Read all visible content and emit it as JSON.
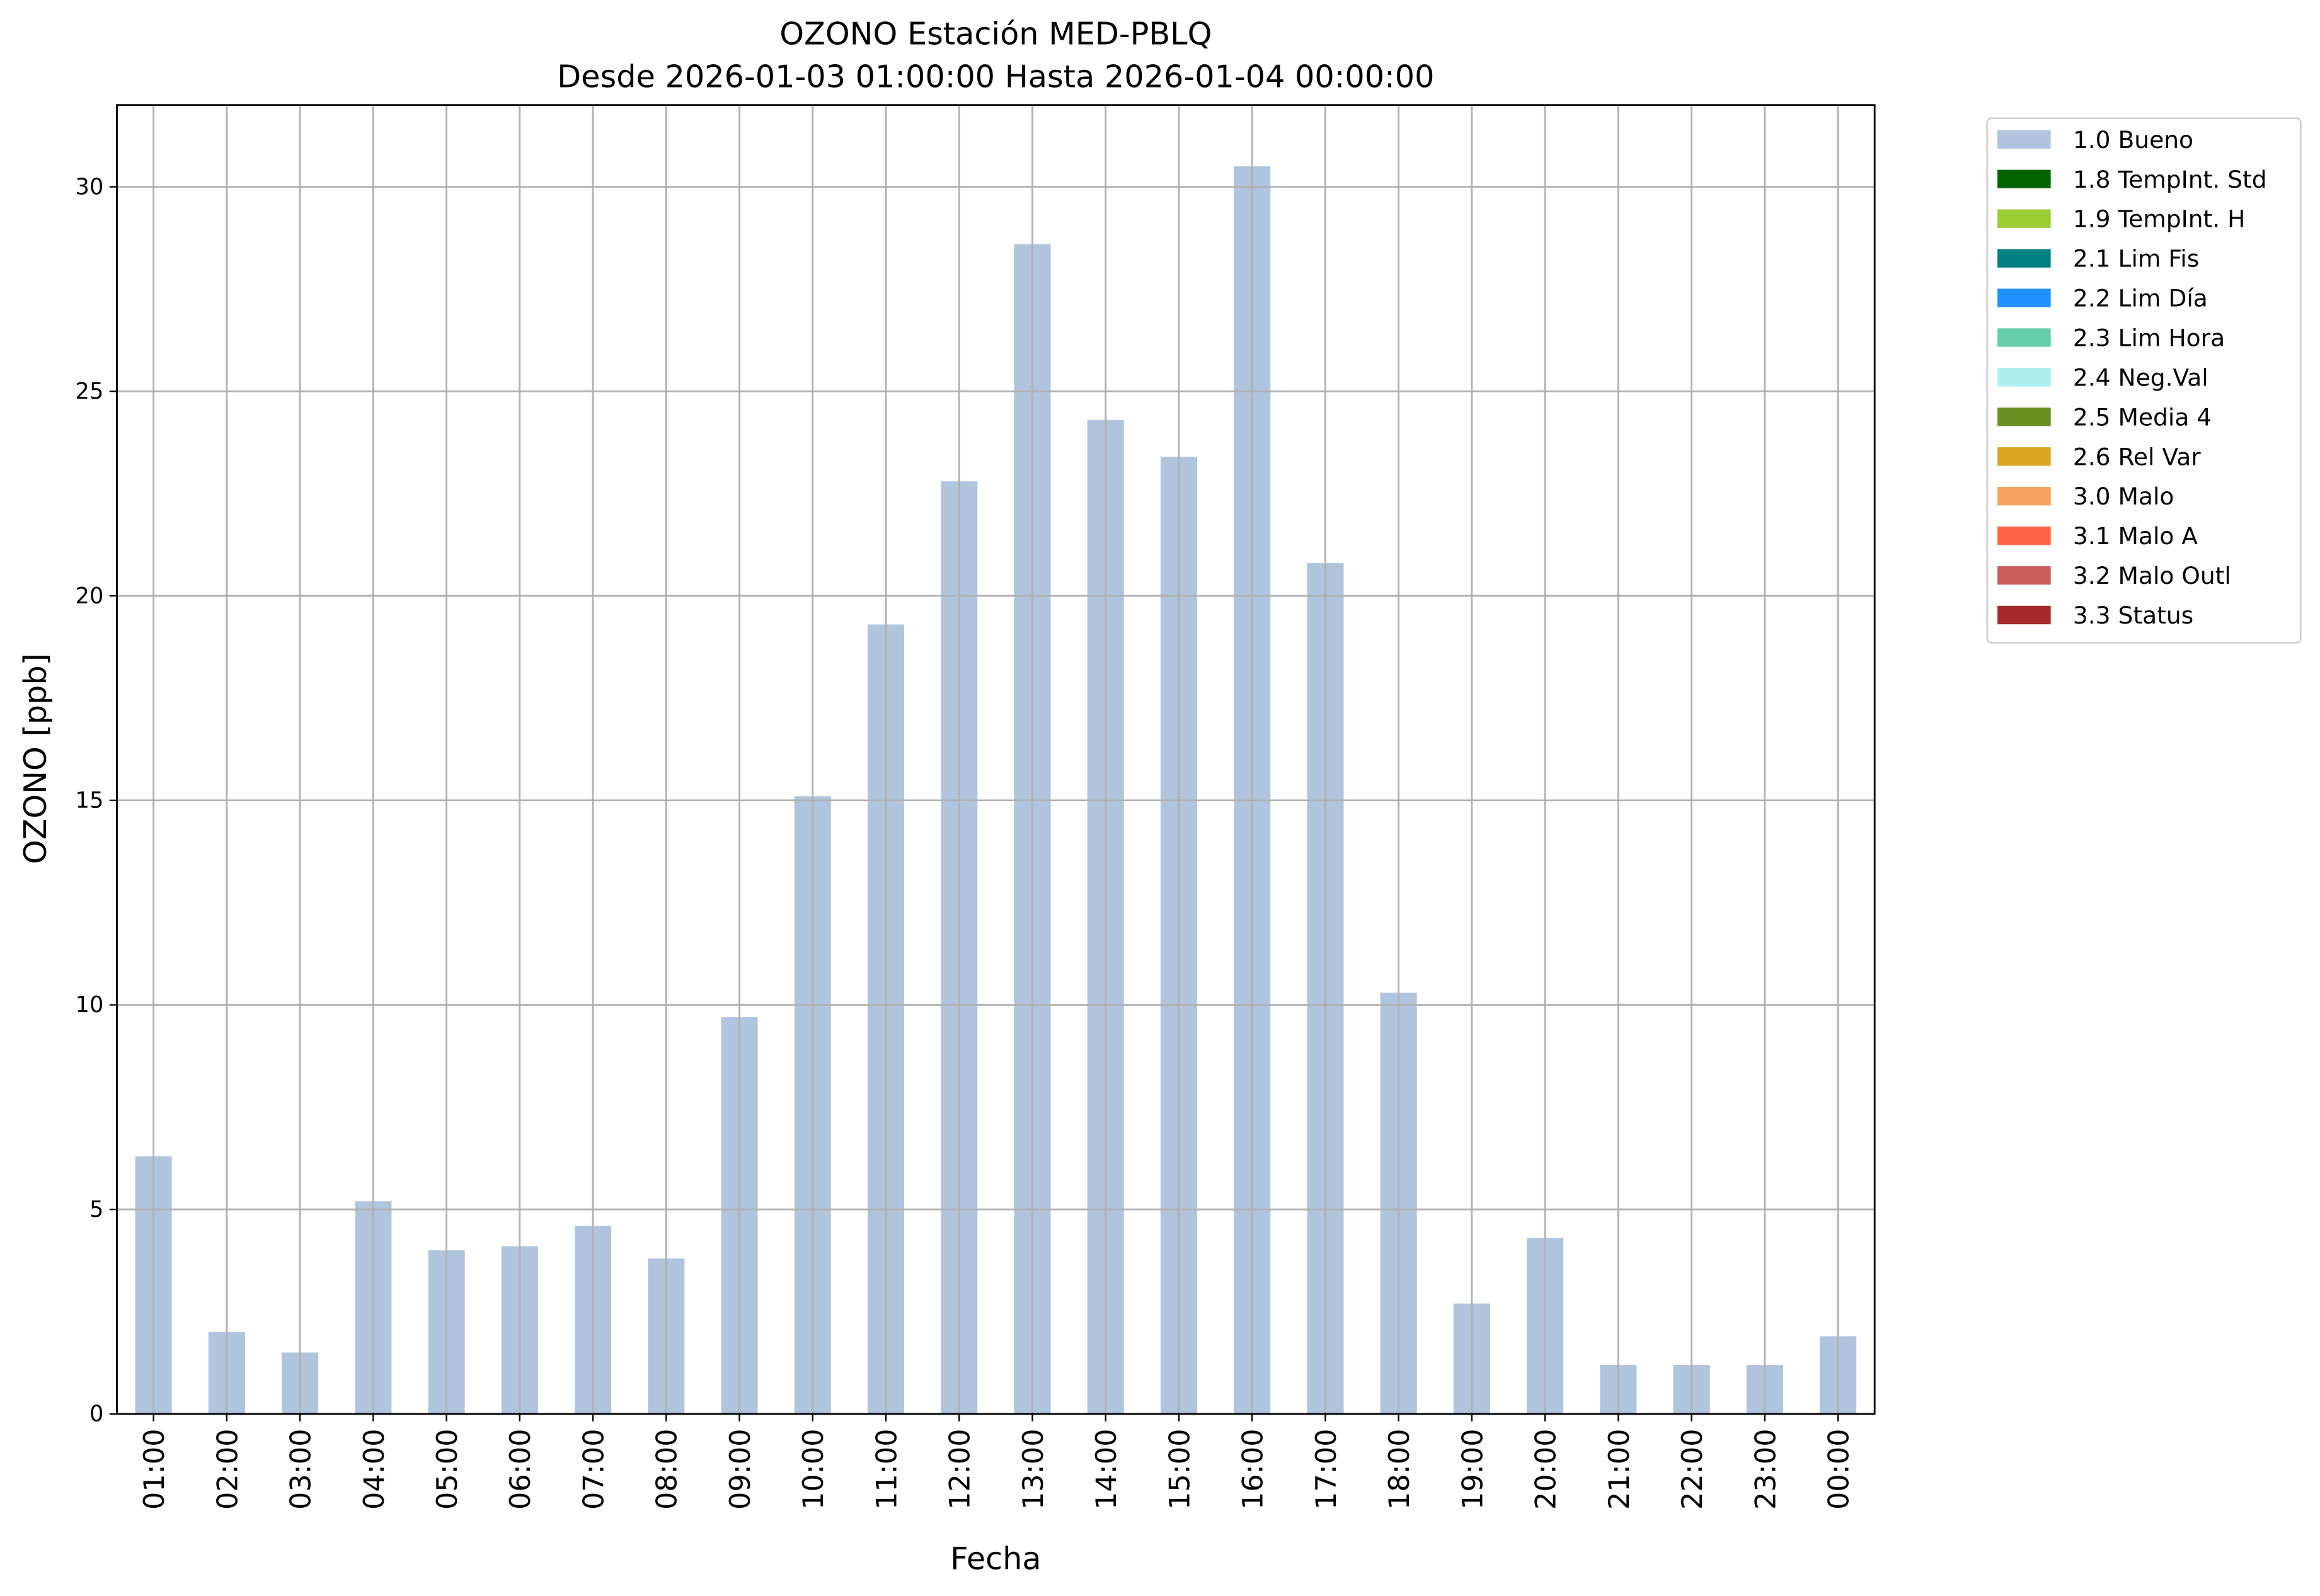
{
  "chart_data": {
    "type": "stacked_bar",
    "title": "OZONO Estación MED-PBLQ",
    "subtitle": "Desde 2026-01-03 01:00:00 Hasta 2026-01-04 00:00:00",
    "x_label": "Fecha",
    "y_label": "OZONO [ppb]",
    "categories": [
      "01:00",
      "02:00",
      "03:00",
      "04:00",
      "05:00",
      "06:00",
      "07:00",
      "08:00",
      "09:00",
      "10:00",
      "11:00",
      "12:00",
      "13:00",
      "14:00",
      "15:00",
      "16:00",
      "17:00",
      "18:00",
      "19:00",
      "20:00",
      "21:00",
      "22:00",
      "23:00",
      "00:00"
    ],
    "series": [
      {
        "name": "1.0 Bueno",
        "color": "#b0c4de",
        "values": [
          6.3,
          2.0,
          1.5,
          5.2,
          4.0,
          4.1,
          4.6,
          3.8,
          9.7,
          15.1,
          19.3,
          22.8,
          28.6,
          24.3,
          23.4,
          30.5,
          20.8,
          10.3,
          2.7,
          4.3,
          1.2,
          1.2,
          1.2,
          1.9
        ]
      },
      {
        "name": "1.8 TempInt. Std",
        "color": "#006400",
        "values": [
          0,
          0,
          0,
          0,
          0,
          0,
          0,
          0,
          0,
          0,
          0,
          0,
          0,
          0,
          0,
          0,
          0,
          0,
          0,
          0,
          0,
          0,
          0,
          0
        ]
      },
      {
        "name": "1.9 TempInt. H",
        "color": "#9acd32",
        "values": [
          0,
          0,
          0,
          0,
          0,
          0,
          0,
          0,
          0,
          0,
          0,
          0,
          0,
          0,
          0,
          0,
          0,
          0,
          0,
          0,
          0,
          0,
          0,
          0
        ]
      },
      {
        "name": "2.1 Lim Fis",
        "color": "#008080",
        "values": [
          0,
          0,
          0,
          0,
          0,
          0,
          0,
          0,
          0,
          0,
          0,
          0,
          0,
          0,
          0,
          0,
          0,
          0,
          0,
          0,
          0,
          0,
          0,
          0
        ]
      },
      {
        "name": "2.2 Lim Día",
        "color": "#1e90ff",
        "values": [
          0,
          0,
          0,
          0,
          0,
          0,
          0,
          0,
          0,
          0,
          0,
          0,
          0,
          0,
          0,
          0,
          0,
          0,
          0,
          0,
          0,
          0,
          0,
          0
        ]
      },
      {
        "name": "2.3 Lim Hora",
        "color": "#66cdaa",
        "values": [
          0,
          0,
          0,
          0,
          0,
          0,
          0,
          0,
          0,
          0,
          0,
          0,
          0,
          0,
          0,
          0,
          0,
          0,
          0,
          0,
          0,
          0,
          0,
          0
        ]
      },
      {
        "name": "2.4 Neg.Val",
        "color": "#afeeee",
        "values": [
          0,
          0,
          0,
          0,
          0,
          0,
          0,
          0,
          0,
          0,
          0,
          0,
          0,
          0,
          0,
          0,
          0,
          0,
          0,
          0,
          0,
          0,
          0,
          0
        ]
      },
      {
        "name": "2.5 Media 4",
        "color": "#6b8e23",
        "values": [
          0,
          0,
          0,
          0,
          0,
          0,
          0,
          0,
          0,
          0,
          0,
          0,
          0,
          0,
          0,
          0,
          0,
          0,
          0,
          0,
          0,
          0,
          0,
          0
        ]
      },
      {
        "name": "2.6 Rel Var",
        "color": "#daa520",
        "values": [
          0,
          0,
          0,
          0,
          0,
          0,
          0,
          0,
          0,
          0,
          0,
          0,
          0,
          0,
          0,
          0,
          0,
          0,
          0,
          0,
          0,
          0,
          0,
          0
        ]
      },
      {
        "name": "3.0 Malo",
        "color": "#f4a460",
        "values": [
          0,
          0,
          0,
          0,
          0,
          0,
          0,
          0,
          0,
          0,
          0,
          0,
          0,
          0,
          0,
          0,
          0,
          0,
          0,
          0,
          0,
          0,
          0,
          0
        ]
      },
      {
        "name": "3.1 Malo A",
        "color": "#ff6347",
        "values": [
          0,
          0,
          0,
          0,
          0,
          0,
          0,
          0,
          0,
          0,
          0,
          0,
          0,
          0,
          0,
          0,
          0,
          0,
          0,
          0,
          0,
          0,
          0,
          0
        ]
      },
      {
        "name": "3.2 Malo Outl",
        "color": "#cd5c5c",
        "values": [
          0,
          0,
          0,
          0,
          0,
          0,
          0,
          0,
          0,
          0,
          0,
          0,
          0,
          0,
          0,
          0,
          0,
          0,
          0,
          0,
          0,
          0,
          0,
          0
        ]
      },
      {
        "name": "3.3 Status",
        "color": "#a52a2a",
        "values": [
          0,
          0,
          0,
          0,
          0,
          0,
          0,
          0,
          0,
          0,
          0,
          0,
          0,
          0,
          0,
          0,
          0,
          0,
          0,
          0,
          0,
          0,
          0,
          0
        ]
      }
    ],
    "ylim": [
      0,
      32
    ],
    "yticks": [
      0,
      5,
      10,
      15,
      20,
      25,
      30
    ],
    "grid": true,
    "legend": "outside-right"
  }
}
